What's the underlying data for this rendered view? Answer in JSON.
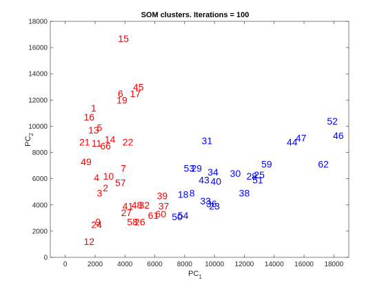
{
  "chart_data": {
    "type": "scatter",
    "title": "SOM clusters.  Iterations = 100",
    "xlabel": "PC",
    "xlabel_sub": "1",
    "ylabel": "PC",
    "ylabel_sub": "2",
    "xlim": [
      -1000,
      19000
    ],
    "ylim": [
      0,
      18000
    ],
    "xticks": [
      0,
      2000,
      4000,
      6000,
      8000,
      10000,
      12000,
      14000,
      16000,
      18000
    ],
    "yticks": [
      0,
      2000,
      4000,
      6000,
      8000,
      10000,
      12000,
      14000,
      16000,
      18000
    ],
    "grid": false,
    "colors": {
      "cluster_1": "#ff0000",
      "cluster_2": "#0000ff"
    },
    "series": [
      {
        "color": "#ff0000",
        "points": [
          {
            "label": "15",
            "x": 3900,
            "y": 16700
          },
          {
            "label": "45",
            "x": 4900,
            "y": 13000
          },
          {
            "label": "17",
            "x": 4700,
            "y": 12500
          },
          {
            "label": "6",
            "x": 3700,
            "y": 12500
          },
          {
            "label": "19",
            "x": 3800,
            "y": 12000
          },
          {
            "label": "1",
            "x": 1900,
            "y": 11400
          },
          {
            "label": "16",
            "x": 1600,
            "y": 10700
          },
          {
            "label": "5",
            "x": 2300,
            "y": 9900
          },
          {
            "label": "13",
            "x": 1900,
            "y": 9700
          },
          {
            "label": "14",
            "x": 3000,
            "y": 9000
          },
          {
            "label": "21",
            "x": 1300,
            "y": 8800
          },
          {
            "label": "11",
            "x": 2100,
            "y": 8700
          },
          {
            "label": "66",
            "x": 2700,
            "y": 8500
          },
          {
            "label": "22",
            "x": 4200,
            "y": 8800
          },
          {
            "label": "49",
            "x": 1400,
            "y": 7300
          },
          {
            "label": "7",
            "x": 3900,
            "y": 6800
          },
          {
            "label": "4",
            "x": 2100,
            "y": 6100
          },
          {
            "label": "10",
            "x": 2900,
            "y": 6200
          },
          {
            "label": "57",
            "x": 3700,
            "y": 5700
          },
          {
            "label": "2",
            "x": 2700,
            "y": 5300
          },
          {
            "label": "3",
            "x": 2300,
            "y": 4900
          },
          {
            "label": "39",
            "x": 6500,
            "y": 4700
          },
          {
            "label": "41",
            "x": 4200,
            "y": 3900
          },
          {
            "label": "48",
            "x": 4800,
            "y": 4000
          },
          {
            "label": "32",
            "x": 5300,
            "y": 4000
          },
          {
            "label": "37",
            "x": 6600,
            "y": 3900
          },
          {
            "label": "27",
            "x": 4100,
            "y": 3400
          },
          {
            "label": "60",
            "x": 6400,
            "y": 3300
          },
          {
            "label": "61",
            "x": 5900,
            "y": 3200
          },
          {
            "label": "58",
            "x": 4500,
            "y": 2700
          },
          {
            "label": "26",
            "x": 5000,
            "y": 2700
          },
          {
            "label": "9",
            "x": 2200,
            "y": 2700
          },
          {
            "label": "24",
            "x": 2100,
            "y": 2500
          },
          {
            "label": "12",
            "x": 1600,
            "y": 1200
          }
        ]
      },
      {
        "color": "#0000ff",
        "points": [
          {
            "label": "52",
            "x": 17900,
            "y": 10400
          },
          {
            "label": "46",
            "x": 18300,
            "y": 9300
          },
          {
            "label": "47",
            "x": 15800,
            "y": 9100
          },
          {
            "label": "44",
            "x": 15200,
            "y": 8800
          },
          {
            "label": "31",
            "x": 9500,
            "y": 8900
          },
          {
            "label": "62",
            "x": 17300,
            "y": 7100
          },
          {
            "label": "59",
            "x": 13500,
            "y": 7100
          },
          {
            "label": "53",
            "x": 8300,
            "y": 6800
          },
          {
            "label": "29",
            "x": 8800,
            "y": 6800
          },
          {
            "label": "34",
            "x": 9900,
            "y": 6500
          },
          {
            "label": "30",
            "x": 11400,
            "y": 6400
          },
          {
            "label": "28",
            "x": 12500,
            "y": 6200
          },
          {
            "label": "25",
            "x": 13000,
            "y": 6300
          },
          {
            "label": "43",
            "x": 9300,
            "y": 5900
          },
          {
            "label": "40",
            "x": 10100,
            "y": 5800
          },
          {
            "label": "51",
            "x": 12900,
            "y": 5900
          },
          {
            "label": "18",
            "x": 7900,
            "y": 4800
          },
          {
            "label": "8",
            "x": 8500,
            "y": 4900
          },
          {
            "label": "38",
            "x": 12000,
            "y": 4900
          },
          {
            "label": "33",
            "x": 9400,
            "y": 4300
          },
          {
            "label": "36",
            "x": 9800,
            "y": 4100
          },
          {
            "label": "23",
            "x": 10000,
            "y": 3900
          },
          {
            "label": "54",
            "x": 7900,
            "y": 3200
          },
          {
            "label": "50",
            "x": 7500,
            "y": 3100
          }
        ]
      }
    ]
  }
}
